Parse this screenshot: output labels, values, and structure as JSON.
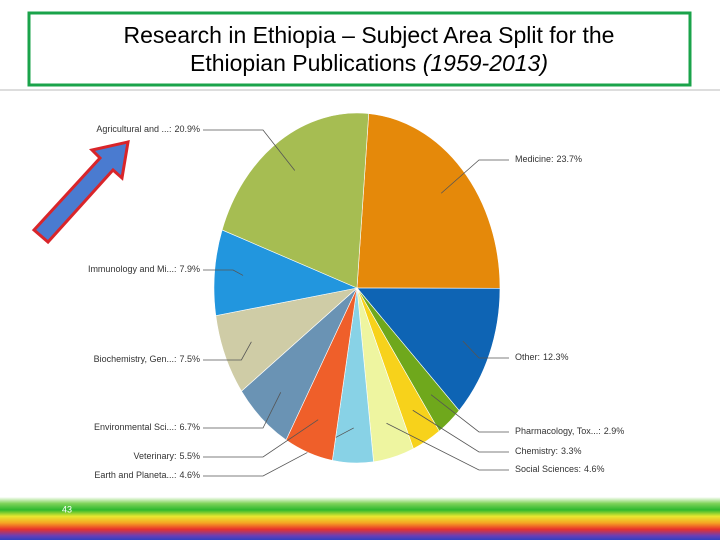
{
  "title_line1": "Research in Ethiopia – Subject Area Split for the",
  "title_line2": "Ethiopian Publications",
  "title_years": "(1959-2013)",
  "slide_number": "43",
  "chart_data": {
    "type": "pie",
    "categories": [
      "Medicine:",
      "Other:",
      "Pharmacology, Tox...:",
      "Chemistry:",
      "Social Sciences:",
      "Earth and Planeta...:",
      "Veterinary:",
      "Environmental Sci...:",
      "Biochemistry, Gen...:",
      "Immunology and Mi...:",
      "Agricultural and ...:"
    ],
    "values": [
      23.7,
      12.3,
      2.9,
      3.3,
      4.6,
      4.6,
      5.5,
      6.7,
      7.5,
      7.9,
      20.9
    ],
    "value_labels": [
      "23.7%",
      "12.3%",
      "2.9%",
      "3.3%",
      "4.6%",
      "4.6%",
      "5.5%",
      "6.7%",
      "7.5%",
      "7.9%",
      "20.9%"
    ],
    "colors": [
      "#e5890a",
      "#0e64b4",
      "#6fa81c",
      "#f7d21b",
      "#eef5a0",
      "#88d2e6",
      "#ef5f2a",
      "#6a93b4",
      "#cfcca6",
      "#2296de",
      "#a6bd52"
    ]
  }
}
